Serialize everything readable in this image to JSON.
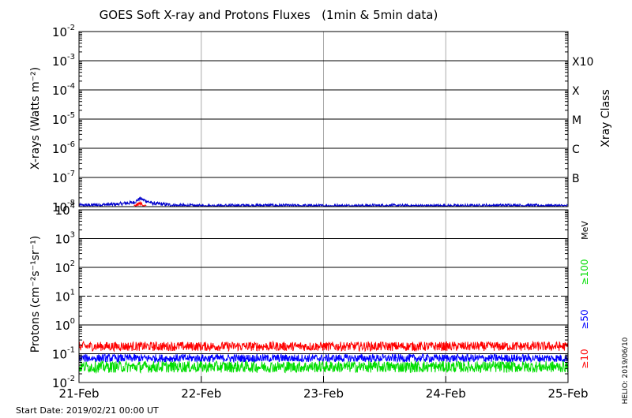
{
  "title": "GOES Soft X-ray and Protons Fluxes   (1min & 5min data)",
  "start_date": "Start Date: 2019/02/21 00:00 UT",
  "footer_right": "HELIO: 2019/06/10",
  "colors": {
    "xray_short": "#ff0000",
    "xray_long": "#0000cc",
    "p10": "#ff0000",
    "p50": "#0000ff",
    "p100": "#00dd00",
    "grid_vertical": "#aaaaaa",
    "axis": "#000000"
  },
  "chart_data": [
    {
      "type": "line",
      "name": "xray-panel",
      "ylabel": "X-rays (Watts m⁻²)",
      "ylabel_right": "Xray Class",
      "yscale": "log",
      "ylim": [
        1e-08,
        0.01
      ],
      "y_ticks": [
        {
          "base": "10",
          "exp": "-2"
        },
        {
          "base": "10",
          "exp": "-3"
        },
        {
          "base": "10",
          "exp": "-4"
        },
        {
          "base": "10",
          "exp": "-5"
        },
        {
          "base": "10",
          "exp": "-6"
        },
        {
          "base": "10",
          "exp": "-7"
        },
        {
          "base": "10",
          "exp": "-8"
        }
      ],
      "class_labels": [
        {
          "label": "X10",
          "value": 0.001
        },
        {
          "label": "X",
          "value": 0.0001
        },
        {
          "label": "M",
          "value": 1e-05
        },
        {
          "label": "C",
          "value": 1e-06
        },
        {
          "label": "B",
          "value": 1e-07
        }
      ],
      "x_days": [
        "21-Feb",
        "22-Feb",
        "23-Feb",
        "24-Feb",
        "25-Feb"
      ],
      "series": [
        {
          "color": "#0000cc",
          "x": [
            0.0,
            0.3,
            0.45,
            0.5,
            0.6,
            0.8,
            1.0,
            1.5,
            2.0,
            2.5,
            3.0,
            3.5,
            4.0
          ],
          "values": [
            1.1e-08,
            1.2e-08,
            1.4e-08,
            1.9e-08,
            1.3e-08,
            1.1e-08,
            1.05e-08,
            1.1e-08,
            1.05e-08,
            1.08e-08,
            1.05e-08,
            1.1e-08,
            1.05e-08
          ]
        },
        {
          "color": "#ff0000",
          "x": [
            0.45,
            0.5,
            0.55
          ],
          "values": [
            1e-08,
            1.3e-08,
            1e-08
          ]
        }
      ]
    },
    {
      "type": "line",
      "name": "proton-panel",
      "ylabel": "Protons (cm⁻²s⁻¹sr⁻¹)",
      "yscale": "log",
      "ylim": [
        0.01,
        10000.0
      ],
      "y_ticks": [
        {
          "base": "10",
          "exp": "4"
        },
        {
          "base": "10",
          "exp": "3"
        },
        {
          "base": "10",
          "exp": "2"
        },
        {
          "base": "10",
          "exp": "1"
        },
        {
          "base": "10",
          "exp": "0"
        },
        {
          "base": "10",
          "exp": "-1"
        },
        {
          "base": "10",
          "exp": "-2"
        }
      ],
      "threshold": 10,
      "energy_unit": "MeV",
      "energy_labels": [
        {
          "label": "≥100",
          "color": "#00dd00"
        },
        {
          "label": "≥50",
          "color": "#0000ff"
        },
        {
          "label": "≥10",
          "color": "#ff0000"
        }
      ],
      "x_days": [
        "21-Feb",
        "22-Feb",
        "23-Feb",
        "24-Feb",
        "25-Feb"
      ],
      "series": [
        {
          "color": "#ff0000",
          "level": 0.18,
          "spread": 0.16
        },
        {
          "color": "#0000ff",
          "level": 0.07,
          "spread": 0.14
        },
        {
          "color": "#00dd00",
          "level": 0.035,
          "spread": 0.2
        }
      ]
    }
  ]
}
